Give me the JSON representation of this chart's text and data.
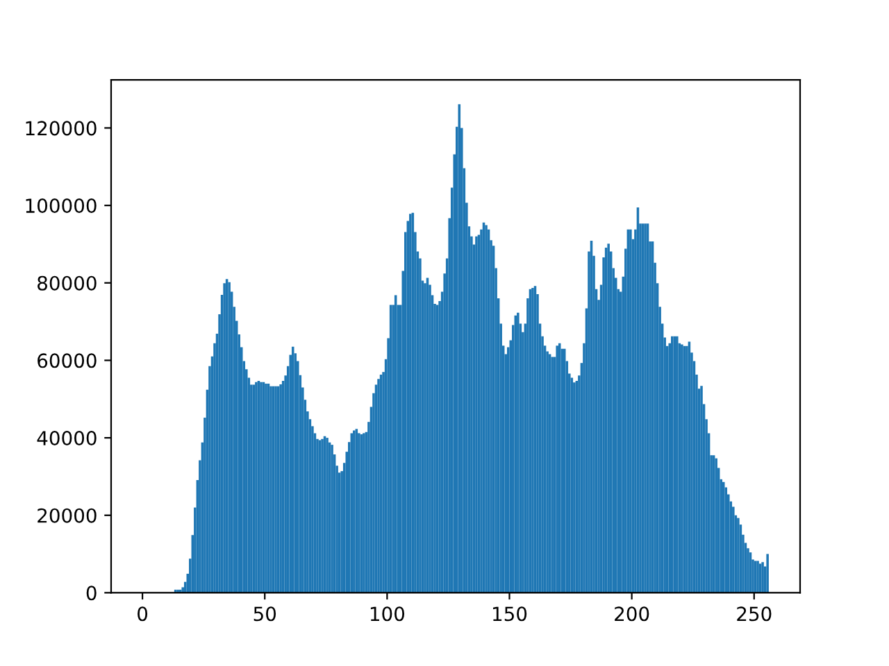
{
  "chart_data": {
    "type": "histogram",
    "color": "#1f77b4",
    "bins": [
      13,
      14,
      15,
      16,
      17,
      18,
      19,
      20,
      21,
      22,
      23,
      24,
      25,
      26,
      27,
      28,
      29,
      30,
      31,
      32,
      33,
      34,
      35,
      36,
      37,
      38,
      39,
      40,
      41,
      42,
      43,
      44,
      45,
      46,
      47,
      48,
      49,
      50,
      51,
      52,
      53,
      54,
      55,
      56,
      57,
      58,
      59,
      60,
      61,
      62,
      63,
      64,
      65,
      66,
      67,
      68,
      69,
      70,
      71,
      72,
      73,
      74,
      75,
      76,
      77,
      78,
      79,
      80,
      81,
      82,
      83,
      84,
      85,
      86,
      87,
      88,
      89,
      90,
      91,
      92,
      93,
      94,
      95,
      96,
      97,
      98,
      99,
      100,
      101,
      102,
      103,
      104,
      105,
      106,
      107,
      108,
      109,
      110,
      111,
      112,
      113,
      114,
      115,
      116,
      117,
      118,
      119,
      120,
      121,
      122,
      123,
      124,
      125,
      126,
      127,
      128,
      129,
      130,
      131,
      132,
      133,
      134,
      135,
      136,
      137,
      138,
      139,
      140,
      141,
      142,
      143,
      144,
      145,
      146,
      147,
      148,
      149,
      150,
      151,
      152,
      153,
      154,
      155,
      156,
      157,
      158,
      159,
      160,
      161,
      162,
      163,
      164,
      165,
      166,
      167,
      168,
      169,
      170,
      171,
      172,
      173,
      174,
      175,
      176,
      177,
      178,
      179,
      180,
      181,
      182,
      183,
      184,
      185,
      186,
      187,
      188,
      189,
      190,
      191,
      192,
      193,
      194,
      195,
      196,
      197,
      198,
      199,
      200,
      201,
      202,
      203,
      204,
      205,
      206,
      207,
      208,
      209,
      210,
      211,
      212,
      213,
      214,
      215,
      216,
      217,
      218,
      219,
      220,
      221,
      222,
      223,
      224,
      225,
      226,
      227,
      228,
      229,
      230,
      231,
      232,
      233,
      234,
      235,
      236,
      237,
      238,
      239,
      240,
      241,
      242,
      243,
      244,
      245,
      246,
      247,
      248,
      249,
      250,
      251,
      252,
      253,
      254,
      255,
      256
    ],
    "values": [
      800,
      800,
      800,
      1400,
      2800,
      4900,
      8800,
      14900,
      22000,
      29100,
      34200,
      38800,
      45200,
      52400,
      58500,
      61000,
      64400,
      66900,
      71900,
      76900,
      79900,
      81000,
      80200,
      77700,
      73800,
      70200,
      66700,
      63400,
      59800,
      57700,
      55500,
      53700,
      53700,
      54400,
      54700,
      54400,
      54400,
      54000,
      54000,
      53300,
      53300,
      53300,
      53300,
      53800,
      54700,
      56100,
      58500,
      61400,
      63500,
      61800,
      59800,
      56200,
      53000,
      49800,
      46800,
      44800,
      43000,
      41200,
      39700,
      39400,
      39700,
      40400,
      40000,
      38800,
      38200,
      35700,
      32800,
      31000,
      31400,
      33500,
      36400,
      38900,
      41200,
      41900,
      42300,
      41200,
      40900,
      41200,
      41500,
      44100,
      48000,
      51500,
      53700,
      55200,
      56300,
      57000,
      60300,
      65700,
      74300,
      74300,
      76800,
      74300,
      74300,
      83100,
      93100,
      96000,
      97800,
      98100,
      93100,
      88100,
      86300,
      80600,
      79900,
      81300,
      79500,
      76800,
      74600,
      74300,
      75300,
      77700,
      82400,
      86300,
      96700,
      104600,
      113200,
      120300,
      126100,
      120000,
      109600,
      100700,
      94600,
      92000,
      89900,
      92000,
      92400,
      93800,
      95600,
      94900,
      93800,
      91000,
      89600,
      83800,
      76000,
      69500,
      63800,
      61600,
      63400,
      65200,
      69100,
      71600,
      72300,
      69500,
      67300,
      69500,
      76000,
      78400,
      78700,
      79200,
      77100,
      69500,
      66200,
      63800,
      62300,
      61600,
      60900,
      60900,
      63800,
      64400,
      63000,
      63000,
      59800,
      56600,
      55500,
      54300,
      54700,
      56100,
      59300,
      64400,
      73400,
      88100,
      90900,
      87000,
      78400,
      75600,
      79500,
      86600,
      89100,
      90100,
      88100,
      83800,
      81300,
      78400,
      77700,
      81600,
      88800,
      93800,
      93800,
      91300,
      93800,
      99500,
      95300,
      95300,
      95300,
      95300,
      90700,
      90700,
      85200,
      79900,
      73800,
      69500,
      65900,
      63700,
      64400,
      66200,
      66200,
      66200,
      64400,
      64100,
      63700,
      63700,
      64800,
      62000,
      59800,
      56300,
      52700,
      53400,
      48700,
      44800,
      41200,
      35500,
      35500,
      34700,
      32200,
      29300,
      28600,
      27200,
      25400,
      23600,
      22200,
      20000,
      19300,
      17600,
      15000,
      12900,
      11500,
      10400,
      8600,
      8200,
      8200,
      7500,
      7900,
      6800,
      10000
    ],
    "xlim": [
      -12.8,
      268.8
    ],
    "xticks": [
      0,
      50,
      100,
      150,
      200,
      250
    ],
    "ylim": [
      0,
      132400
    ],
    "yticks": [
      0,
      20000,
      40000,
      60000,
      80000,
      100000,
      120000
    ],
    "grid": false,
    "legend": false
  }
}
